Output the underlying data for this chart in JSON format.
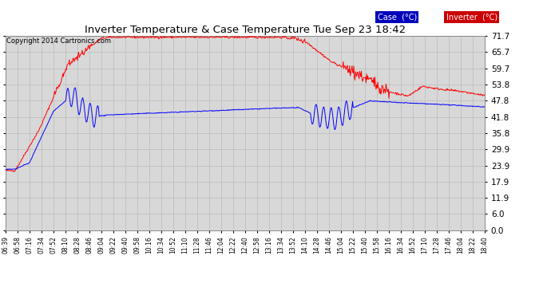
{
  "title": "Inverter Temperature & Case Temperature Tue Sep 23 18:42",
  "copyright": "Copyright 2014 Cartronics.com",
  "legend_case_label": "Case  (°C)",
  "legend_inverter_label": "Inverter  (°C)",
  "case_color": "#0000ff",
  "inverter_color": "#ff0000",
  "legend_case_bg": "#0000bb",
  "legend_inverter_bg": "#cc0000",
  "bg_color": "#ffffff",
  "plot_bg_color": "#d8d8d8",
  "grid_color": "#bbbbbb",
  "ylim": [
    0.0,
    71.7
  ],
  "yticks": [
    0.0,
    6.0,
    11.9,
    17.9,
    23.9,
    29.9,
    35.8,
    41.8,
    47.8,
    53.8,
    59.7,
    65.7,
    71.7
  ],
  "xtick_labels": [
    "06:39",
    "06:58",
    "07:16",
    "07:34",
    "07:52",
    "08:10",
    "08:28",
    "08:46",
    "09:04",
    "09:22",
    "09:40",
    "09:58",
    "10:16",
    "10:34",
    "10:52",
    "11:10",
    "11:28",
    "11:46",
    "12:04",
    "12:22",
    "12:40",
    "12:58",
    "13:16",
    "13:34",
    "13:52",
    "14:10",
    "14:28",
    "14:46",
    "15:04",
    "15:22",
    "15:40",
    "15:58",
    "16:16",
    "16:34",
    "16:52",
    "17:10",
    "17:28",
    "17:46",
    "18:04",
    "18:22",
    "18:40"
  ]
}
